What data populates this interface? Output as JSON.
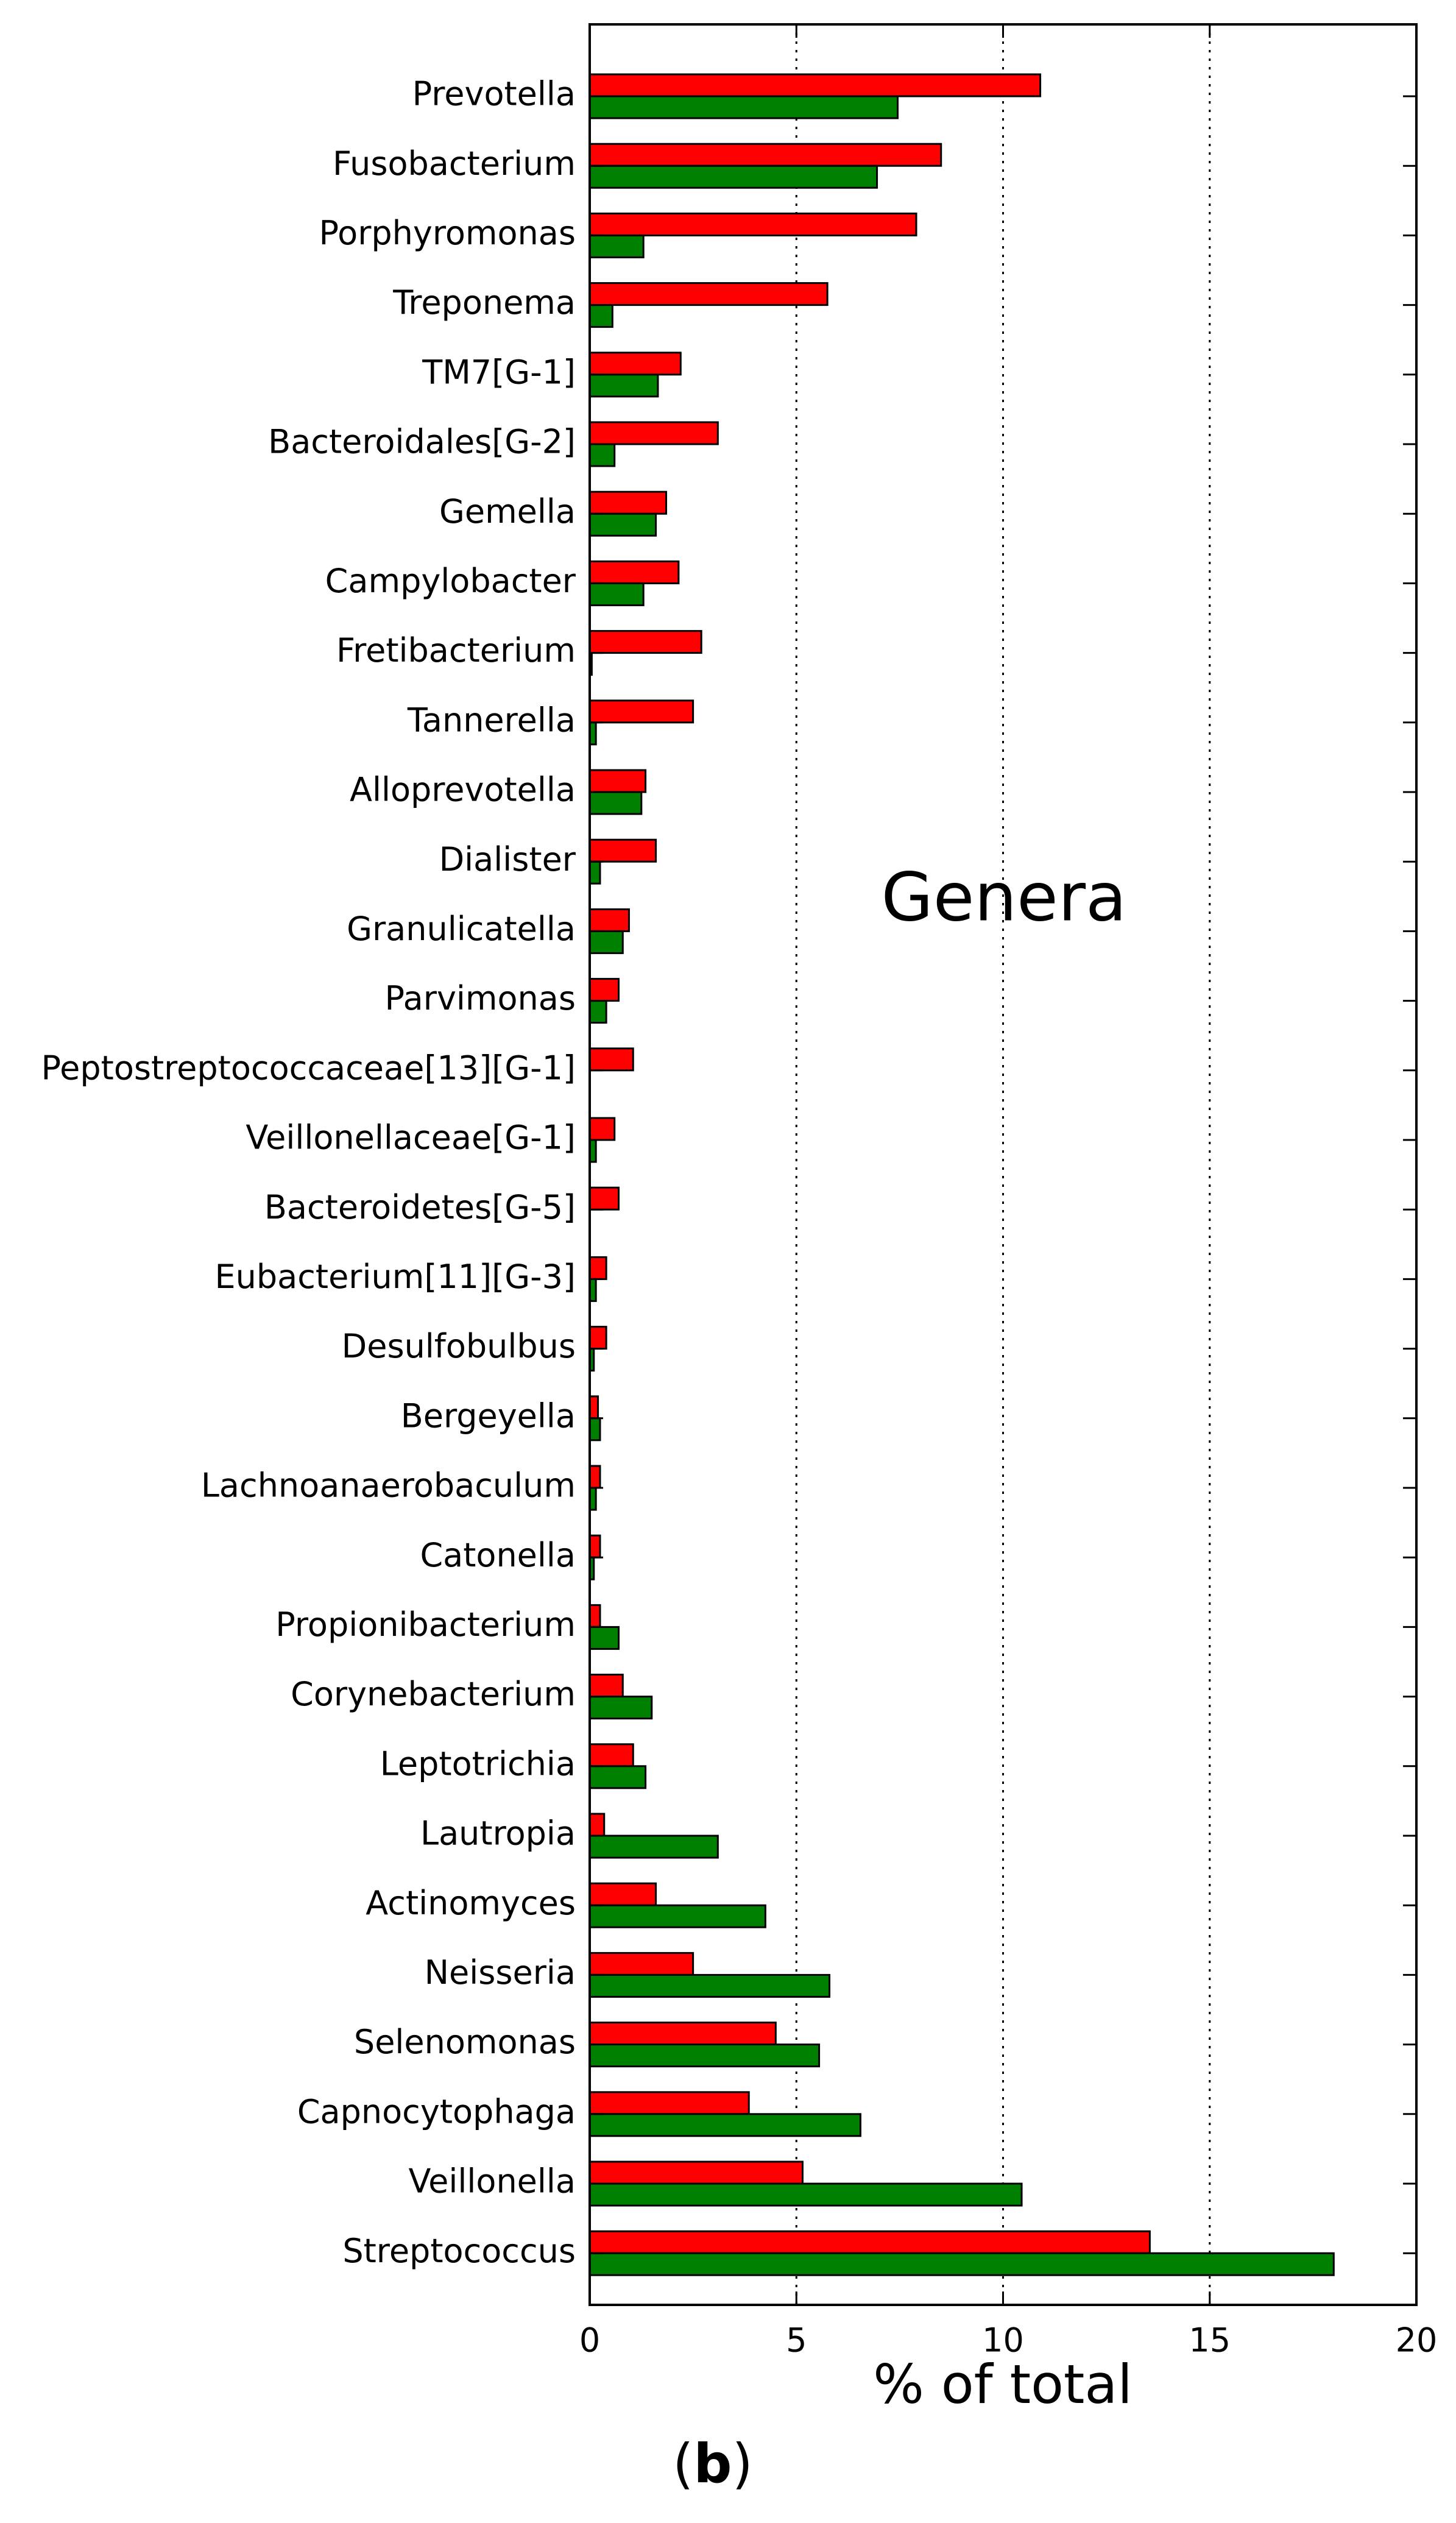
{
  "chart_data": {
    "type": "bar",
    "orientation": "horizontal",
    "categories": [
      "Prevotella",
      "Fusobacterium",
      "Porphyromonas",
      "Treponema",
      "TM7[G-1]",
      "Bacteroidales[G-2]",
      "Gemella",
      "Campylobacter",
      "Fretibacterium",
      "Tannerella",
      "Alloprevotella",
      "Dialister",
      "Granulicatella",
      "Parvimonas",
      "Peptostreptococcaceae[13][G-1]",
      "Veillonellaceae[G-1]",
      "Bacteroidetes[G-5]",
      "Eubacterium[11][G-3]",
      "Desulfobulbus",
      "Bergeyella",
      "Lachnoanaerobaculum",
      "Catonella",
      "Propionibacterium",
      "Corynebacterium",
      "Leptotrichia",
      "Lautropia",
      "Actinomyces",
      "Neisseria",
      "Selenomonas",
      "Capnocytophaga",
      "Veillonella",
      "Streptococcus"
    ],
    "series": [
      {
        "color": "#ff0000",
        "values": [
          10.9,
          8.5,
          7.9,
          5.75,
          2.2,
          3.1,
          1.85,
          2.15,
          2.7,
          2.5,
          1.35,
          1.6,
          0.95,
          0.7,
          1.05,
          0.6,
          0.7,
          0.4,
          0.4,
          0.2,
          0.25,
          0.25,
          0.25,
          0.8,
          1.05,
          0.35,
          1.6,
          2.5,
          4.5,
          3.85,
          5.15,
          13.55
        ]
      },
      {
        "color": "#008000",
        "values": [
          7.45,
          6.95,
          1.3,
          0.55,
          1.65,
          0.6,
          1.6,
          1.3,
          0.05,
          0.15,
          1.25,
          0.25,
          0.8,
          0.4,
          0.0,
          0.15,
          0.0,
          0.15,
          0.1,
          0.25,
          0.15,
          0.1,
          0.7,
          1.5,
          1.35,
          3.1,
          4.25,
          5.8,
          5.55,
          6.55,
          10.45,
          18.0
        ]
      }
    ],
    "xlim": [
      0,
      20
    ],
    "xticks": [
      0,
      5,
      10,
      15,
      20
    ],
    "xlabel": "% of total",
    "ylabel": "",
    "title": "",
    "grid": "vertical dotted lines at 5, 10, 15",
    "legend": "none",
    "annotation": "Genera",
    "caption_letter": "b"
  }
}
